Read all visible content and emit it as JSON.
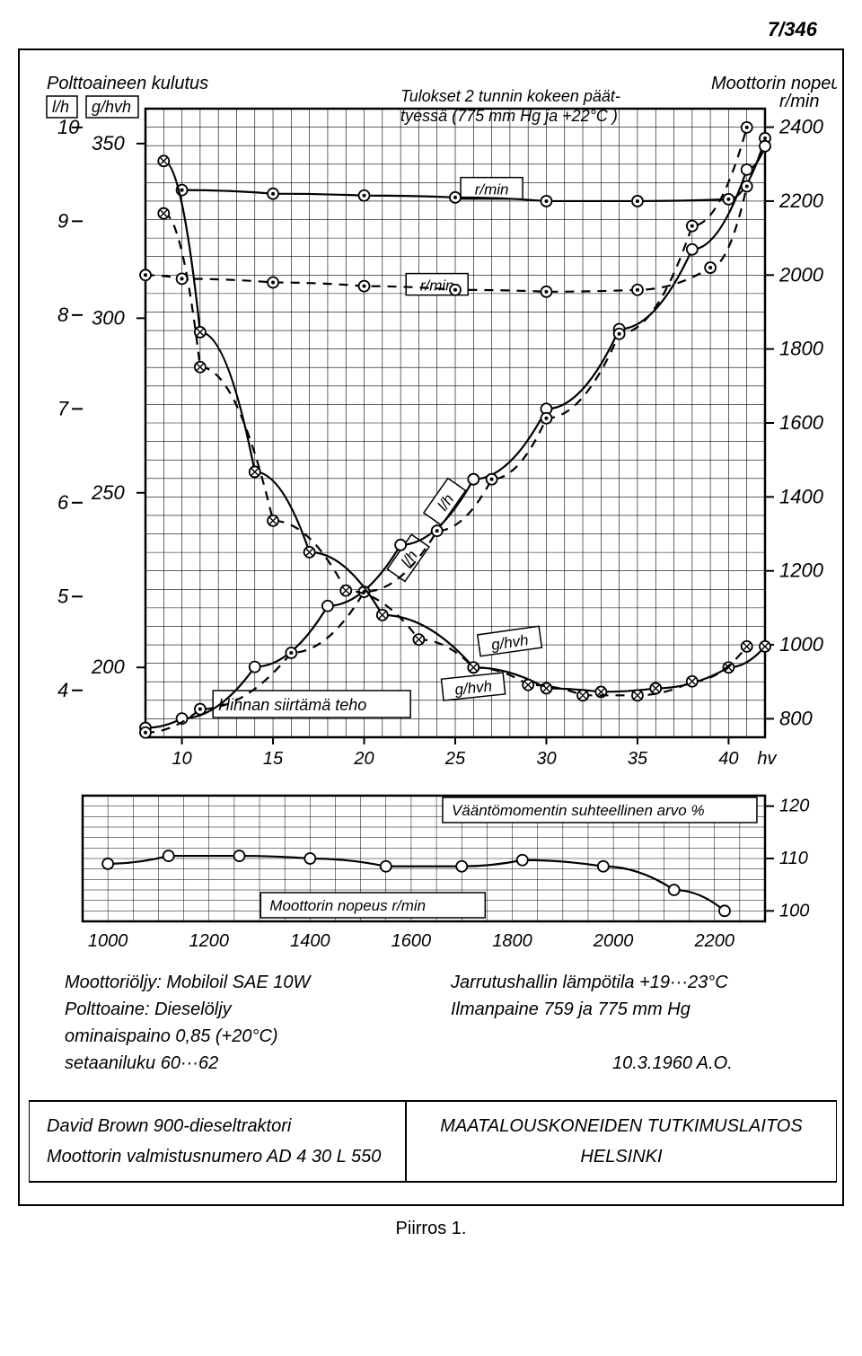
{
  "page_number": "7/346",
  "caption": "Piirros 1.",
  "date_code": "10.3.1960 A.O.",
  "main_chart": {
    "type": "multi-axis-line",
    "background_color": "#ffffff",
    "grid_color": "#222222",
    "axis_color": "#000000",
    "font_italic": true,
    "title_boxes": {
      "top_left": {
        "line1": "Polttoaineen kulutus",
        "line2_left": "l/h",
        "line2_right": "g/hvh"
      },
      "top_center": {
        "line1": "Tulokset 2 tunnin kokeen päät-",
        "line2": "tyessä (775 mm Hg ja +22°C )"
      },
      "top_right": {
        "line1": "Moottorin nopeus",
        "line2": "r/min"
      },
      "bottom_left": "Hihnan siirtämä teho"
    },
    "inline_labels": {
      "rmin1": "r/min",
      "rmin2": "r/min",
      "lh1": "l/h",
      "lh2": "l/h",
      "ghvh1": "g/hvh",
      "ghvh2": "g/hvh"
    },
    "x_axis": {
      "label": "hv",
      "ticks": [
        10,
        15,
        20,
        25,
        30,
        35,
        40
      ],
      "xlim": [
        8,
        42
      ],
      "fontsize": 20
    },
    "y_axes": {
      "lh": {
        "ticks": [
          4,
          5,
          6,
          7,
          8,
          9,
          10
        ],
        "ylim": [
          3.5,
          10.2
        ],
        "fontsize": 22
      },
      "ghvh": {
        "ticks": [
          200,
          250,
          300,
          350
        ],
        "ylim": [
          180,
          360
        ],
        "fontsize": 22
      },
      "rmin": {
        "ticks": [
          800,
          1000,
          1200,
          1400,
          1600,
          1800,
          2000,
          2200,
          2400
        ],
        "ylim": [
          750,
          2450
        ],
        "fontsize": 22
      }
    },
    "series": {
      "rmin_upper_solid": {
        "marker": "circle_dot",
        "style": "solid",
        "x": [
          10,
          15,
          20,
          25,
          30,
          35,
          40,
          42
        ],
        "y": [
          2230,
          2220,
          2215,
          2210,
          2200,
          2200,
          2205,
          2370
        ]
      },
      "rmin_upper_dashed": {
        "marker": "circle_dot",
        "style": "dashed",
        "x": [
          8,
          10,
          15,
          20,
          25,
          30,
          35,
          39,
          41
        ],
        "y": [
          2000,
          1990,
          1980,
          1970,
          1960,
          1955,
          1960,
          2020,
          2240
        ]
      },
      "lh_solid": {
        "marker": "circle_open",
        "style": "solid",
        "x": [
          8,
          10,
          14,
          18,
          22,
          26,
          30,
          34,
          38,
          41,
          42
        ],
        "y_lh": [
          3.6,
          3.7,
          4.25,
          4.9,
          5.55,
          6.25,
          7.0,
          7.85,
          8.7,
          9.55,
          9.8
        ]
      },
      "lh_dashed": {
        "marker": "circle_dot",
        "style": "dashed",
        "x": [
          8,
          11,
          16,
          20,
          24,
          27,
          30,
          34,
          38,
          41
        ],
        "y_lh": [
          3.55,
          3.8,
          4.4,
          5.05,
          5.7,
          6.25,
          6.9,
          7.8,
          8.95,
          10.0
        ]
      },
      "ghvh_solid": {
        "marker": "circle_cross",
        "style": "solid",
        "x": [
          9,
          11,
          14,
          17,
          21,
          26,
          30,
          33,
          36,
          40,
          42
        ],
        "y_g": [
          345,
          296,
          256,
          233,
          215,
          200,
          194,
          193,
          194,
          200,
          206
        ]
      },
      "ghvh_dashed": {
        "marker": "circle_cross",
        "style": "dashed",
        "x": [
          9,
          11,
          15,
          19,
          23,
          26,
          29,
          32,
          35,
          38,
          41
        ],
        "y_g": [
          330,
          286,
          242,
          222,
          208,
          200,
          195,
          192,
          192,
          196,
          206
        ]
      }
    }
  },
  "torque_chart": {
    "type": "line",
    "title_subplot": "Vääntömomentin suhteellinen arvo %",
    "x_axis": {
      "label": "Moottorin nopeus r/min",
      "ticks": [
        1000,
        1200,
        1400,
        1600,
        1800,
        2000,
        2200
      ],
      "xlim": [
        950,
        2300
      ],
      "fontsize": 20
    },
    "y_axis": {
      "ticks": [
        100,
        110,
        120
      ],
      "ylim": [
        98,
        122
      ],
      "fontsize": 20
    },
    "series": {
      "torque": {
        "marker": "circle_open",
        "style": "solid",
        "x": [
          1000,
          1120,
          1260,
          1400,
          1550,
          1700,
          1820,
          1980,
          2120,
          2220
        ],
        "y": [
          109,
          110.5,
          110.5,
          110,
          108.5,
          108.5,
          109.7,
          108.5,
          104,
          100
        ]
      }
    }
  },
  "notes": {
    "left_col": [
      "Moottoriöljy: Mobiloil SAE 10W",
      "Polttoaine: Dieselöljy",
      "                 ominaispaino 0,85 (+20°C)",
      "                 setaaniluku 60···62"
    ],
    "right_col": [
      "Jarrutushallin lämpötila +19···23°C",
      "Ilmanpaine 759 ja 775 mm Hg"
    ]
  },
  "footer": {
    "left_line1": "David Brown 900-dieseltraktori",
    "left_line2": "Moottorin valmistusnumero AD 4 30 L 550",
    "right_line1": "MAATALOUSKONEIDEN TUTKIMUSLAITOS",
    "right_line2": "HELSINKI"
  },
  "styling": {
    "stroke_width_axis": 2.5,
    "stroke_width_series": 2.2,
    "marker_radius": 6,
    "label_fontsize": 18,
    "note_fontsize": 20,
    "footer_fontsize": 20
  }
}
